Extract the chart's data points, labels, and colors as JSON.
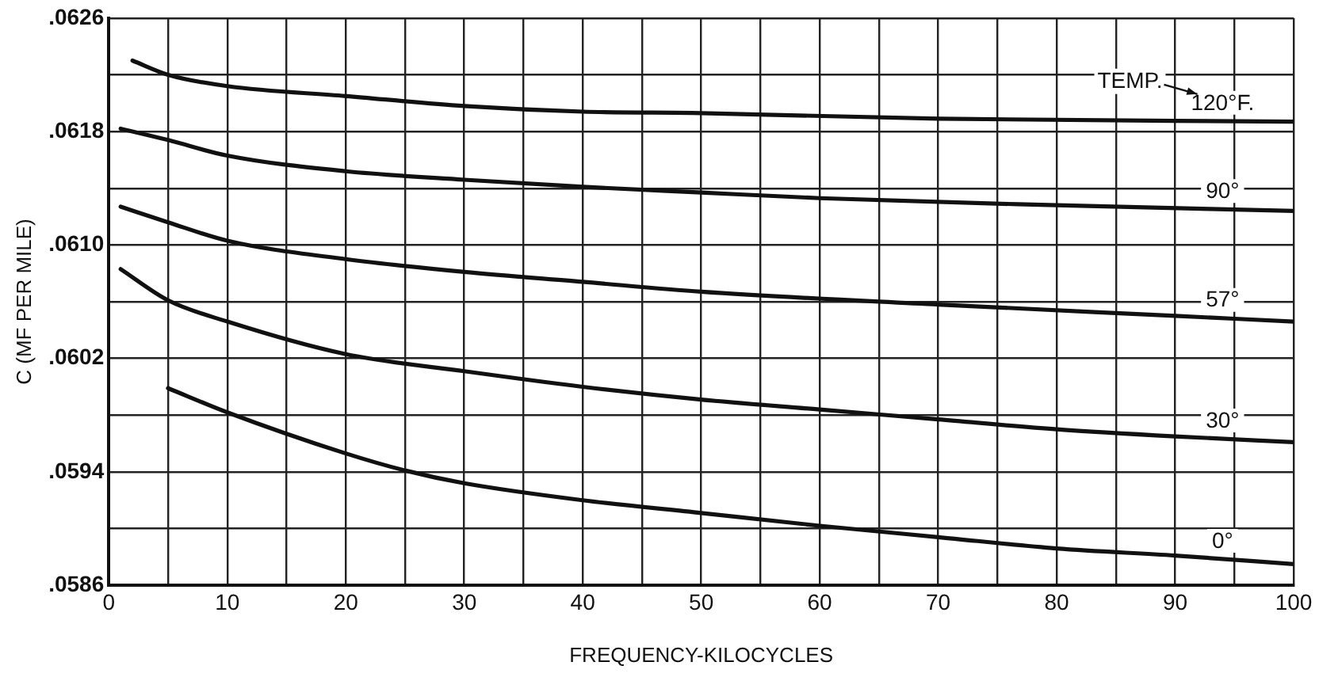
{
  "chart_data": {
    "type": "line",
    "xlabel": "FREQUENCY-KILOCYCLES",
    "ylabel": "C (MF PER MILE)",
    "marker": "none",
    "line_style": "solid",
    "grid": true,
    "xlim": [
      0,
      100
    ],
    "xticks": [
      0,
      {
        "value": 5,
        "label": null
      },
      10,
      {
        "value": 15,
        "label": null
      },
      20,
      {
        "value": 25,
        "label": null
      },
      30,
      {
        "value": 35,
        "label": null
      },
      40,
      {
        "value": 45,
        "label": null
      },
      50,
      {
        "value": 55,
        "label": null
      },
      60,
      {
        "value": 65,
        "label": null
      },
      70,
      {
        "value": 75,
        "label": null
      },
      80,
      {
        "value": 85,
        "label": null
      },
      90,
      {
        "value": 95,
        "label": null
      },
      100
    ],
    "ylim": [
      0.0586,
      0.0626
    ],
    "yticks": [
      {
        "value": 0.0586,
        "label": ".0586"
      },
      {
        "value": 0.059,
        "label": null
      },
      {
        "value": 0.0594,
        "label": ".0594"
      },
      {
        "value": 0.0598,
        "label": null
      },
      {
        "value": 0.0602,
        "label": ".0602"
      },
      {
        "value": 0.0606,
        "label": null
      },
      {
        "value": 0.061,
        "label": ".0610"
      },
      {
        "value": 0.0614,
        "label": null
      },
      {
        "value": 0.0618,
        "label": ".0618"
      },
      {
        "value": 0.0622,
        "label": null
      },
      {
        "value": 0.0626,
        "label": ".0626"
      }
    ],
    "annotations": [
      "TEMP."
    ],
    "series": [
      {
        "name": "120°F.",
        "color": "#111111",
        "x": [
          2,
          5,
          10,
          20,
          30,
          40,
          50,
          70,
          100
        ],
        "values": [
          0.0623,
          0.0622,
          0.06212,
          0.06205,
          0.06198,
          0.06194,
          0.06193,
          0.06189,
          0.06187
        ]
      },
      {
        "name": "90°",
        "color": "#111111",
        "x": [
          1,
          5,
          10,
          20,
          30,
          40,
          50,
          60,
          80,
          100
        ],
        "values": [
          0.06182,
          0.06174,
          0.06163,
          0.06152,
          0.06146,
          0.06141,
          0.06137,
          0.06133,
          0.06128,
          0.06124
        ]
      },
      {
        "name": "57°",
        "color": "#111111",
        "x": [
          1,
          5,
          10,
          20,
          30,
          40,
          50,
          70,
          90,
          100
        ],
        "values": [
          0.06127,
          0.06116,
          0.06103,
          0.0609,
          0.06081,
          0.06074,
          0.06067,
          0.06058,
          0.0605,
          0.06046
        ]
      },
      {
        "name": "30°",
        "color": "#111111",
        "x": [
          1,
          5,
          10,
          20,
          30,
          40,
          50,
          60,
          70,
          80,
          90,
          100
        ],
        "values": [
          0.06083,
          0.06061,
          0.06046,
          0.06023,
          0.06011,
          0.06,
          0.05991,
          0.05984,
          0.05977,
          0.0597,
          0.05965,
          0.05961
        ]
      },
      {
        "name": "0°",
        "color": "#111111",
        "x": [
          5,
          10,
          20,
          25,
          30,
          40,
          50,
          60,
          70,
          80,
          90,
          100
        ],
        "values": [
          0.05999,
          0.05982,
          0.05953,
          0.05941,
          0.05932,
          0.0592,
          0.05911,
          0.05902,
          0.05894,
          0.05886,
          0.05881,
          0.05875
        ]
      }
    ]
  }
}
